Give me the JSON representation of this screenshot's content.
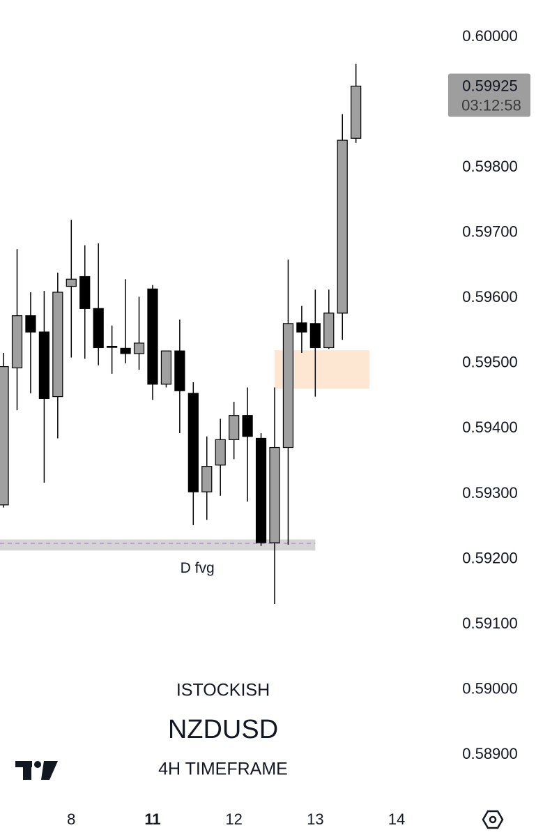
{
  "chart_data": {
    "type": "candlestick",
    "symbol": "NZDUSD",
    "author": "ISTOCKISH",
    "timeframe": "4H TIMEFRAME",
    "open": [
      0.59283,
      0.59493,
      0.59573,
      0.59548,
      0.59449,
      0.59618,
      0.59633,
      0.59584,
      0.59526,
      0.59523,
      0.59515,
      0.59614,
      0.59468,
      0.59519,
      0.59454,
      0.59303,
      0.59344,
      0.59383,
      0.5942,
      0.59385,
      0.59225,
      0.59371,
      0.59562,
      0.59561,
      0.59524,
      0.59577,
      0.59845
    ],
    "high": [
      0.59516,
      0.59675,
      0.59609,
      0.59611,
      0.59639,
      0.5972,
      0.59681,
      0.59684,
      0.59558,
      0.59629,
      0.59602,
      0.5962,
      0.59519,
      0.59567,
      0.59471,
      0.59388,
      0.59415,
      0.59441,
      0.59463,
      0.59393,
      0.59463,
      0.59659,
      0.59588,
      0.59613,
      0.59613,
      0.59882,
      0.59959
    ],
    "low": [
      0.59279,
      0.59428,
      0.59454,
      0.59317,
      0.59385,
      0.59509,
      0.59507,
      0.59497,
      0.59484,
      0.595,
      0.5949,
      0.59444,
      0.59463,
      0.59393,
      0.59252,
      0.5926,
      0.59297,
      0.59353,
      0.59288,
      0.5922,
      0.59131,
      0.59222,
      0.59516,
      0.59449,
      0.59522,
      0.59536,
      0.59838
    ],
    "close": [
      0.59495,
      0.59573,
      0.59548,
      0.59446,
      0.59609,
      0.59629,
      0.59584,
      0.59524,
      0.59526,
      0.59515,
      0.59531,
      0.59468,
      0.59519,
      0.59458,
      0.59303,
      0.59342,
      0.59383,
      0.5942,
      0.59388,
      0.59225,
      0.59371,
      0.59561,
      0.59548,
      0.59524,
      0.59577,
      0.59842,
      0.59925
    ],
    "up_color": "#a0a0a0",
    "down_color": "#000000",
    "ylim": [
      0.58838,
      0.60057
    ],
    "yticks": [
      {
        "value": 0.6,
        "label": "0.60000"
      },
      {
        "value": 0.598,
        "label": "0.59800"
      },
      {
        "value": 0.597,
        "label": "0.59700"
      },
      {
        "value": 0.596,
        "label": "0.59600"
      },
      {
        "value": 0.595,
        "label": "0.59500"
      },
      {
        "value": 0.594,
        "label": "0.59400"
      },
      {
        "value": 0.593,
        "label": "0.59300"
      },
      {
        "value": 0.592,
        "label": "0.59200"
      },
      {
        "value": 0.591,
        "label": "0.59100"
      },
      {
        "value": 0.59,
        "label": "0.59000"
      },
      {
        "value": 0.589,
        "label": "0.58900"
      }
    ],
    "xlim": [
      -0.26,
      32.65
    ],
    "xticks": [
      {
        "value": 5,
        "label": "8"
      },
      {
        "value": 11,
        "label": "11"
      },
      {
        "value": 17,
        "label": "12"
      },
      {
        "value": 23,
        "label": "13"
      },
      {
        "value": 29,
        "label": "14"
      }
    ],
    "last_price": {
      "value": 0.59925,
      "label": "0.59925",
      "countdown": "03:12:58"
    },
    "zones": [
      {
        "ylim": [
          0.59461,
          0.5952
        ],
        "xrange": [
          20,
          27
        ],
        "color": "#fde6d2"
      },
      {
        "ylim": [
          0.59213,
          0.5923
        ],
        "xrange": [
          -1,
          23
        ],
        "color": "#d4d4d4"
      }
    ],
    "level": {
      "value": 0.59224,
      "color": "#b07cc6"
    },
    "annotation": {
      "text": "D fvg",
      "x": 14.3,
      "y": 0.59185
    }
  }
}
